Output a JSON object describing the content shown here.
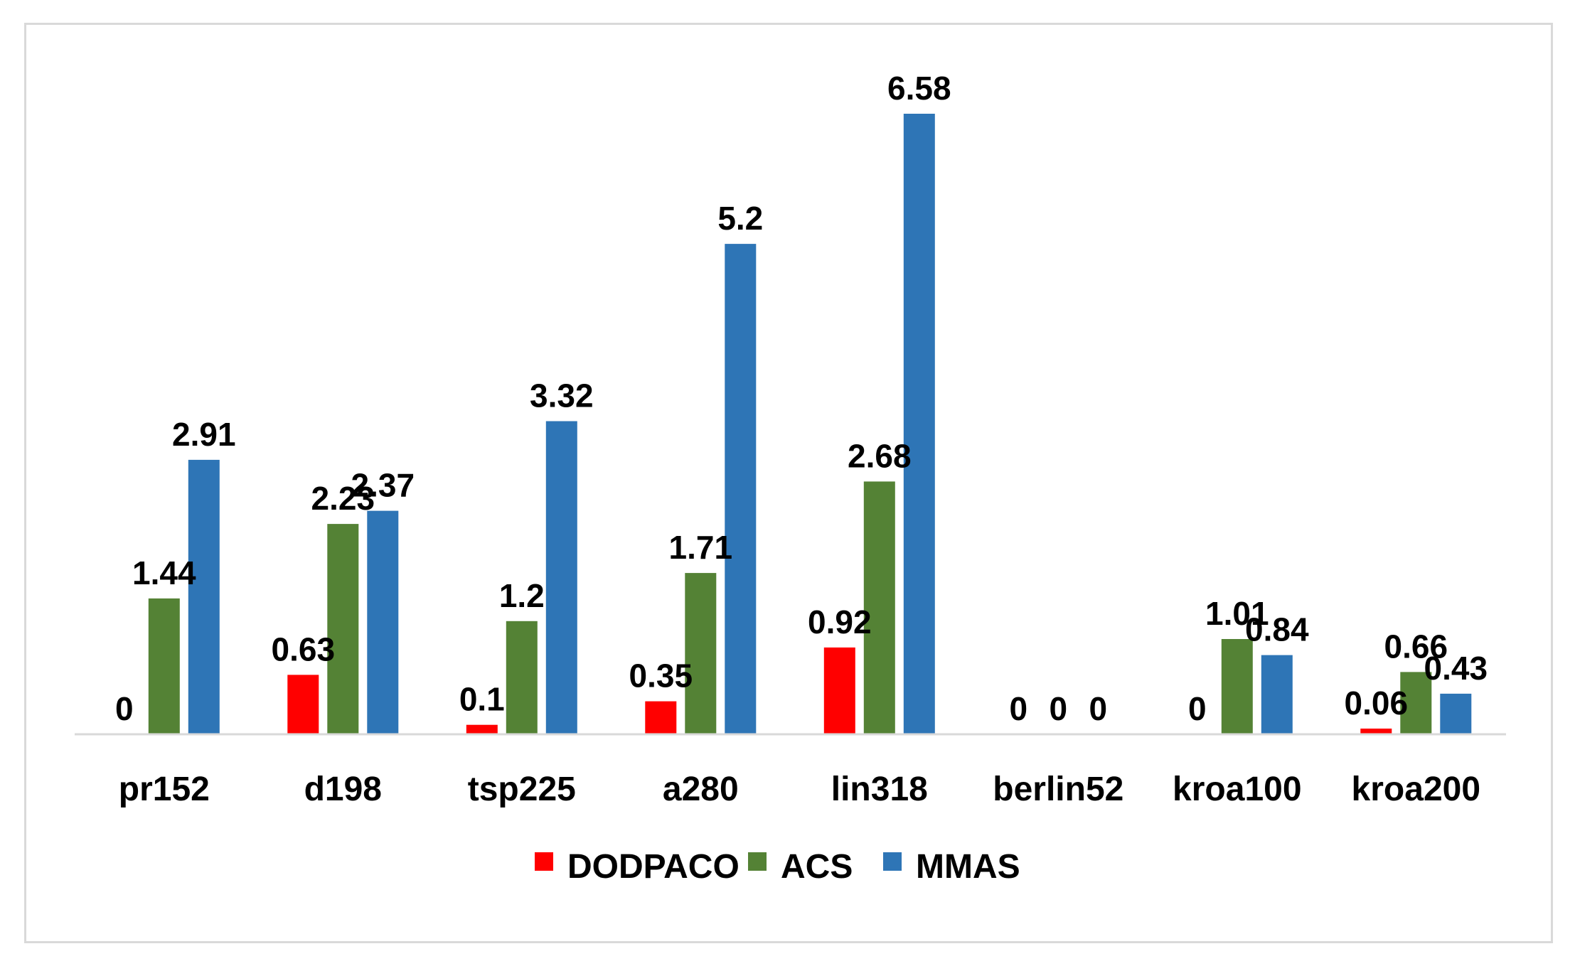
{
  "chart_data": {
    "type": "bar",
    "title": "",
    "xlabel": "",
    "ylabel": "",
    "ylim": [
      0,
      7
    ],
    "grid": false,
    "legend_position": "bottom",
    "categories": [
      "pr152",
      "d198",
      "tsp225",
      "a280",
      "lin318",
      "berlin52",
      "kroa100",
      "kroa200"
    ],
    "series": [
      {
        "name": "DODPACO",
        "color": "#ff0000",
        "values": [
          0,
          0.63,
          0.1,
          0.35,
          0.92,
          0,
          0,
          0.06
        ],
        "labels": [
          "0",
          "0.63",
          "0.1",
          "0.35",
          "0.92",
          "0",
          "0",
          "0.06"
        ]
      },
      {
        "name": "ACS",
        "color": "#548235",
        "values": [
          1.44,
          2.23,
          1.2,
          1.71,
          2.68,
          0,
          1.01,
          0.66
        ],
        "labels": [
          "1.44",
          "2.23",
          "1.2",
          "1.71",
          "2.68",
          "0",
          "1.01",
          "0.66"
        ]
      },
      {
        "name": "MMAS",
        "color": "#2e75b6",
        "values": [
          2.91,
          2.37,
          3.32,
          5.2,
          6.58,
          0,
          0.84,
          0.43
        ],
        "labels": [
          "2.91",
          "2.37",
          "3.32",
          "5.2",
          "6.58",
          "0",
          "0.84",
          "0.43"
        ]
      }
    ]
  }
}
